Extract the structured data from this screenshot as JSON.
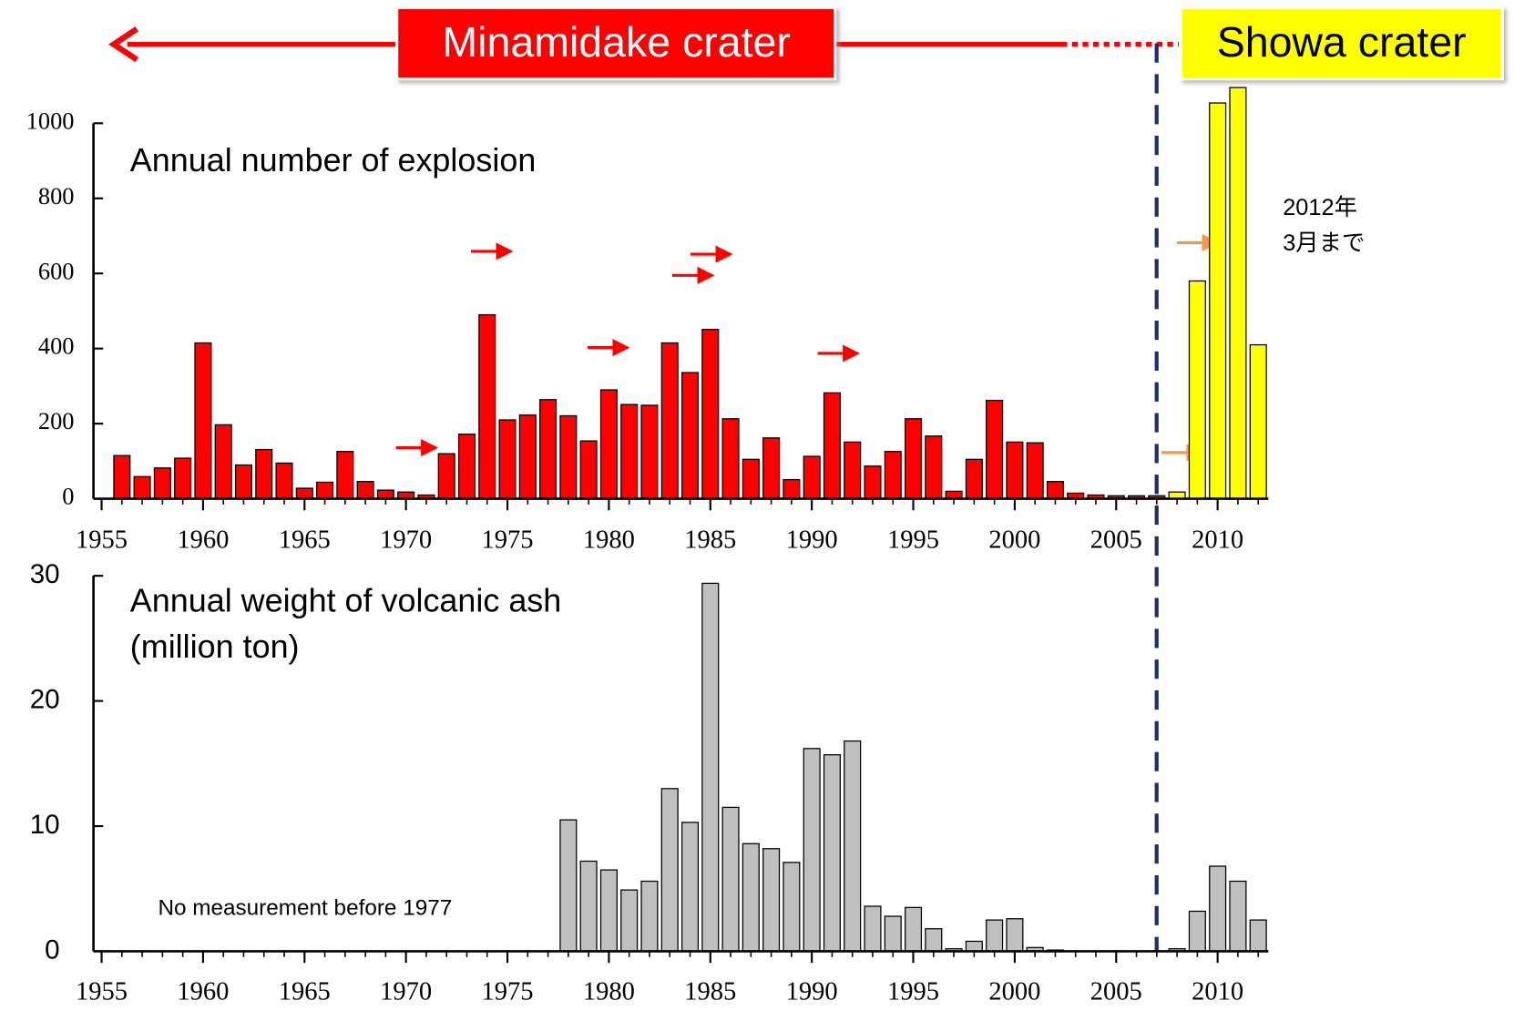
{
  "note": [
    "2012年",
    "3月まで"
  ],
  "chart_data": [
    {
      "type": "bar",
      "title": "Annual number of explosion",
      "x": [
        1956,
        1957,
        1958,
        1959,
        1960,
        1961,
        1962,
        1963,
        1964,
        1965,
        1966,
        1967,
        1968,
        1969,
        1970,
        1971,
        1972,
        1973,
        1974,
        1975,
        1976,
        1977,
        1978,
        1979,
        1980,
        1981,
        1982,
        1983,
        1984,
        1985,
        1986,
        1987,
        1988,
        1989,
        1990,
        1991,
        1992,
        1993,
        1994,
        1995,
        1996,
        1997,
        1998,
        1999,
        2000,
        2001,
        2002,
        2003,
        2004,
        2005,
        2006,
        2007,
        2008,
        2009,
        2010,
        2011,
        2012
      ],
      "series": [
        {
          "name": "Minamidake crater",
          "color": "#ff0000",
          "values": [
            115,
            59,
            82,
            108,
            415,
            197,
            90,
            131,
            95,
            28,
            44,
            126,
            46,
            23,
            18,
            10,
            120,
            172,
            490,
            210,
            223,
            264,
            221,
            154,
            290,
            251,
            249,
            415,
            336,
            451,
            213,
            105,
            162,
            51,
            113,
            282,
            151,
            87,
            126,
            213,
            167,
            20,
            105,
            262,
            151,
            149,
            46,
            15,
            10,
            8,
            8,
            8,
            null,
            null,
            null,
            null,
            null
          ]
        },
        {
          "name": "Showa crater",
          "color": "#ffff00",
          "values": [
            null,
            null,
            null,
            null,
            null,
            null,
            null,
            null,
            null,
            null,
            null,
            null,
            null,
            null,
            null,
            null,
            null,
            null,
            null,
            null,
            null,
            null,
            null,
            null,
            null,
            null,
            null,
            null,
            null,
            null,
            null,
            null,
            null,
            null,
            null,
            null,
            null,
            null,
            null,
            null,
            null,
            null,
            null,
            null,
            null,
            null,
            null,
            null,
            null,
            null,
            null,
            null,
            18,
            580,
            1054,
            1095,
            410
          ]
        }
      ],
      "xlim": [
        1954.6,
        2012.5
      ],
      "xticks": [
        1955,
        1960,
        1965,
        1970,
        1975,
        1980,
        1985,
        1990,
        1995,
        2000,
        2005,
        2010
      ],
      "ylim": [
        0,
        1000
      ],
      "yticks": [
        0,
        200,
        400,
        600,
        800,
        1000
      ]
    },
    {
      "type": "bar",
      "title": "Annual weight of volcanic ash",
      "subtitle": "(million ton)",
      "annotation": "No measurement before 1977",
      "x": [
        1956,
        1957,
        1958,
        1959,
        1960,
        1961,
        1962,
        1963,
        1964,
        1965,
        1966,
        1967,
        1968,
        1969,
        1970,
        1971,
        1972,
        1973,
        1974,
        1975,
        1976,
        1977,
        1978,
        1979,
        1980,
        1981,
        1982,
        1983,
        1984,
        1985,
        1986,
        1987,
        1988,
        1989,
        1990,
        1991,
        1992,
        1993,
        1994,
        1995,
        1996,
        1997,
        1998,
        1999,
        2000,
        2001,
        2002,
        2003,
        2004,
        2005,
        2006,
        2007,
        2008,
        2009,
        2010,
        2011,
        2012
      ],
      "series": [
        {
          "color": "#c0c0c0",
          "values": [
            null,
            null,
            null,
            null,
            null,
            null,
            null,
            null,
            null,
            null,
            null,
            null,
            null,
            null,
            null,
            null,
            null,
            null,
            null,
            null,
            null,
            null,
            10.5,
            7.2,
            6.5,
            4.9,
            5.6,
            13.0,
            10.3,
            29.4,
            11.5,
            8.6,
            8.2,
            7.1,
            16.2,
            15.7,
            16.8,
            3.6,
            2.8,
            3.5,
            1.8,
            0.2,
            0.8,
            2.5,
            2.6,
            0.3,
            0.1,
            0,
            0,
            0,
            0,
            0,
            0.2,
            3.2,
            6.8,
            5.6,
            2.5
          ]
        }
      ],
      "xlim": [
        1954.6,
        2012.5
      ],
      "xticks": [
        1955,
        1960,
        1965,
        1970,
        1975,
        1980,
        1985,
        1990,
        1995,
        2000,
        2005,
        2010
      ],
      "ylim": [
        0,
        30
      ],
      "yticks": [
        0,
        10,
        20,
        30
      ]
    }
  ]
}
